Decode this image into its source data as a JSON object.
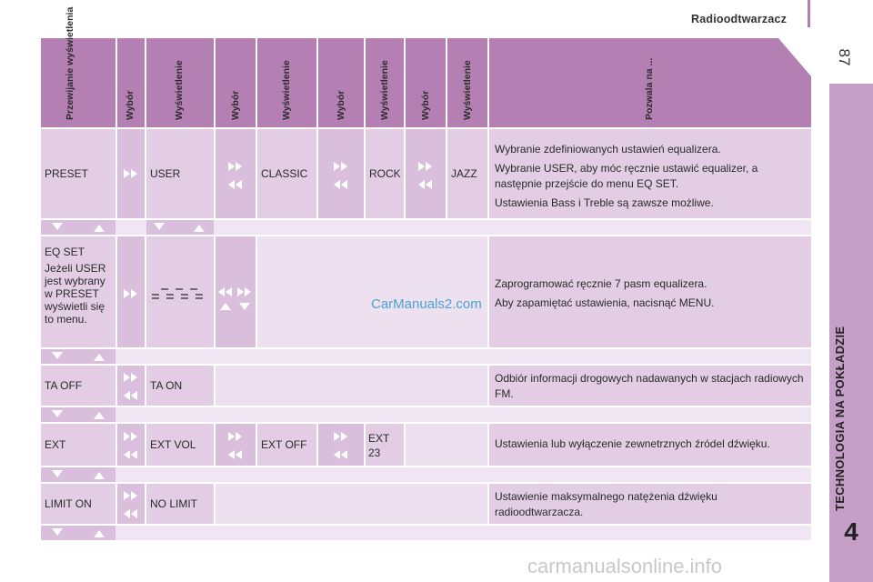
{
  "header": {
    "title": "Radioodtwarzacz",
    "page_number": "87"
  },
  "sidebar": {
    "section": "TECHNOLOGIA NA POKŁADZIE",
    "chapter": "4"
  },
  "columns": [
    "Przewijanie wyświetlenia",
    "Wybór",
    "Wyświetlenie",
    "Wybór",
    "Wyświetlenie",
    "Wybór",
    "Wyświetlenie",
    "Wybór",
    "Wyświetlenie",
    "Pozwala na ..."
  ],
  "rows": [
    {
      "c1": "PRESET",
      "c3": "USER",
      "c5": "CLASSIC",
      "c7": "ROCK",
      "c9": "JAZZ",
      "desc": [
        "Wybranie zdefiniowanych ustawień equalizera.",
        "Wybranie USER, aby móc ręcznie ustawić equalizer, a następnie przejście do menu EQ SET.",
        "Ustawienia Bass i Treble są zawsze możliwe."
      ]
    },
    {
      "c1_title": "EQ SET",
      "c1_note": "Jeżeli USER jest wybrany w PRESET wyświetli się to menu.",
      "desc": [
        "Zaprogramować ręcznie 7 pasm equalizera.",
        "Aby zapamiętać ustawienia, nacisnąć MENU."
      ]
    },
    {
      "c1": "TA OFF",
      "c3": "TA ON",
      "desc": [
        "Odbiór informacji drogowych nadawanych w stacjach radiowych FM."
      ]
    },
    {
      "c1": "EXT",
      "c3": "EXT VOL",
      "c5": "EXT OFF",
      "c7": "EXT 23",
      "desc": [
        "Ustawienia lub wyłączenie zewnetrznych źródel dźwięku."
      ]
    },
    {
      "c1": "LIMIT ON",
      "c3": "NO LIMIT",
      "desc": [
        "Ustawienie maksymalnego natężenia dźwięku radioodtwarzacza."
      ]
    }
  ],
  "watermarks": {
    "mid": "CarManuals2.com",
    "footer": "carmanualsonline.info"
  },
  "colors": {
    "header": "#b47fb3",
    "cell": "#e2cde5",
    "button_cell": "#d9bfdc",
    "sidebar": "#c59fc8",
    "arrow": "#ffffff"
  }
}
